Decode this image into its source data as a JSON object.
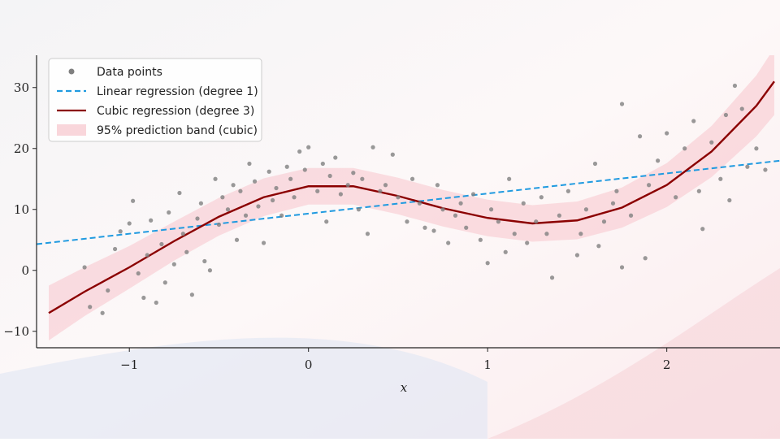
{
  "chart_data": {
    "type": "scatter",
    "xlabel": "x",
    "legend": "upper left",
    "xlim": [
      -1.518,
      2.632
    ],
    "ylim": [
      -12.7,
      35.3
    ],
    "xticks": [
      {
        "value": -1,
        "label": "−1"
      },
      0,
      1,
      2
    ],
    "yticks": [
      {
        "value": -10,
        "label": "−10"
      },
      0,
      10,
      20,
      30
    ],
    "series": [
      {
        "name": "Data points",
        "type": "scatter",
        "color": "#7f7f7f",
        "x": [
          -1.25,
          -1.22,
          -1.15,
          -1.12,
          -1.08,
          -1.05,
          -1.0,
          -0.98,
          -0.95,
          -0.92,
          -0.9,
          -0.88,
          -0.85,
          -0.82,
          -0.8,
          -0.78,
          -0.75,
          -0.72,
          -0.7,
          -0.68,
          -0.65,
          -0.62,
          -0.6,
          -0.58,
          -0.55,
          -0.52,
          -0.5,
          -0.48,
          -0.45,
          -0.42,
          -0.4,
          -0.38,
          -0.35,
          -0.33,
          -0.3,
          -0.28,
          -0.25,
          -0.22,
          -0.2,
          -0.18,
          -0.15,
          -0.12,
          -0.1,
          -0.08,
          -0.05,
          -0.02,
          0,
          0.05,
          0.08,
          0.1,
          0.12,
          0.15,
          0.18,
          0.22,
          0.25,
          0.28,
          0.3,
          0.33,
          0.36,
          0.4,
          0.43,
          0.47,
          0.5,
          0.55,
          0.58,
          0.62,
          0.65,
          0.7,
          0.72,
          0.75,
          0.78,
          0.82,
          0.85,
          0.88,
          0.92,
          0.96,
          1.0,
          1.02,
          1.06,
          1.1,
          1.12,
          1.15,
          1.2,
          1.22,
          1.27,
          1.3,
          1.33,
          1.36,
          1.4,
          1.45,
          1.5,
          1.52,
          1.55,
          1.6,
          1.62,
          1.65,
          1.7,
          1.72,
          1.75,
          1.75,
          1.8,
          1.85,
          1.88,
          1.9,
          1.95,
          2.0,
          2.05,
          2.1,
          2.15,
          2.18,
          2.2,
          2.25,
          2.3,
          2.33,
          2.35,
          2.38,
          2.42,
          2.45,
          2.5,
          2.55
        ],
        "y": [
          0.5,
          -6,
          -7,
          -3.3,
          3.5,
          6.4,
          7.7,
          11.4,
          -0.5,
          -4.5,
          2.5,
          8.2,
          -5.3,
          4.3,
          -2,
          9.5,
          1,
          12.7,
          6,
          3,
          -4,
          8.5,
          11,
          1.5,
          0,
          15,
          7.5,
          12,
          10,
          14,
          5,
          13,
          9,
          17.5,
          14.6,
          10.5,
          4.5,
          16.2,
          11.5,
          13.5,
          9,
          17,
          15,
          12,
          19.5,
          16.5,
          20.2,
          13,
          17.5,
          8,
          15.5,
          18.5,
          12.5,
          14,
          16,
          10,
          15,
          6,
          20.2,
          13,
          14,
          19,
          12,
          8,
          15,
          11,
          7,
          6.5,
          14,
          10,
          4.5,
          9,
          11,
          7,
          12.5,
          5,
          1.2,
          10,
          8,
          3,
          15,
          6,
          11,
          4.5,
          8,
          12,
          6,
          -1.2,
          9,
          13,
          2.5,
          6,
          10,
          17.5,
          4,
          8,
          11,
          13,
          0.5,
          27.3,
          9,
          22,
          2,
          14,
          18,
          22.5,
          12,
          20,
          24.5,
          13,
          6.8,
          21,
          15,
          25.5,
          11.5,
          30.3,
          26.5,
          17,
          20,
          16.5
        ]
      },
      {
        "name": "Linear regression (degree 1)",
        "type": "line",
        "style": "dashed",
        "color": "#1f9ae0",
        "x": [
          -1.518,
          2.632
        ],
        "y": [
          4.3,
          18.0
        ]
      },
      {
        "name": "Cubic regression (degree 3)",
        "type": "line",
        "style": "solid",
        "color": "#8b0000",
        "x": [
          -1.45,
          -1.25,
          -1.0,
          -0.75,
          -0.5,
          -0.25,
          0,
          0.25,
          0.5,
          0.75,
          1.0,
          1.25,
          1.5,
          1.75,
          2.0,
          2.25,
          2.5,
          2.6
        ],
        "y": [
          -7,
          -3.5,
          0.5,
          4.8,
          8.8,
          12.0,
          13.8,
          13.8,
          12.2,
          10.2,
          8.6,
          7.7,
          8.2,
          10.3,
          14.0,
          19.5,
          27,
          31
        ]
      },
      {
        "name": "95% prediction band (cubic)",
        "type": "band",
        "color": "#f7c5cc",
        "x": [
          -1.45,
          -1.25,
          -1.0,
          -0.75,
          -0.5,
          -0.25,
          0,
          0.25,
          0.5,
          0.75,
          1.0,
          1.25,
          1.5,
          1.75,
          2.0,
          2.25,
          2.5,
          2.6
        ],
        "lower": [
          -11.5,
          -7.5,
          -3.0,
          1.6,
          5.7,
          8.9,
          10.8,
          10.8,
          9.2,
          7.2,
          5.6,
          4.7,
          5.1,
          7.0,
          10.4,
          15.3,
          22,
          25.5
        ],
        "upper": [
          -2.5,
          0.5,
          4.0,
          8.0,
          11.9,
          15.1,
          16.8,
          16.8,
          15.2,
          13.2,
          11.6,
          10.7,
          11.3,
          13.6,
          17.6,
          23.7,
          32,
          36.5
        ]
      }
    ]
  }
}
